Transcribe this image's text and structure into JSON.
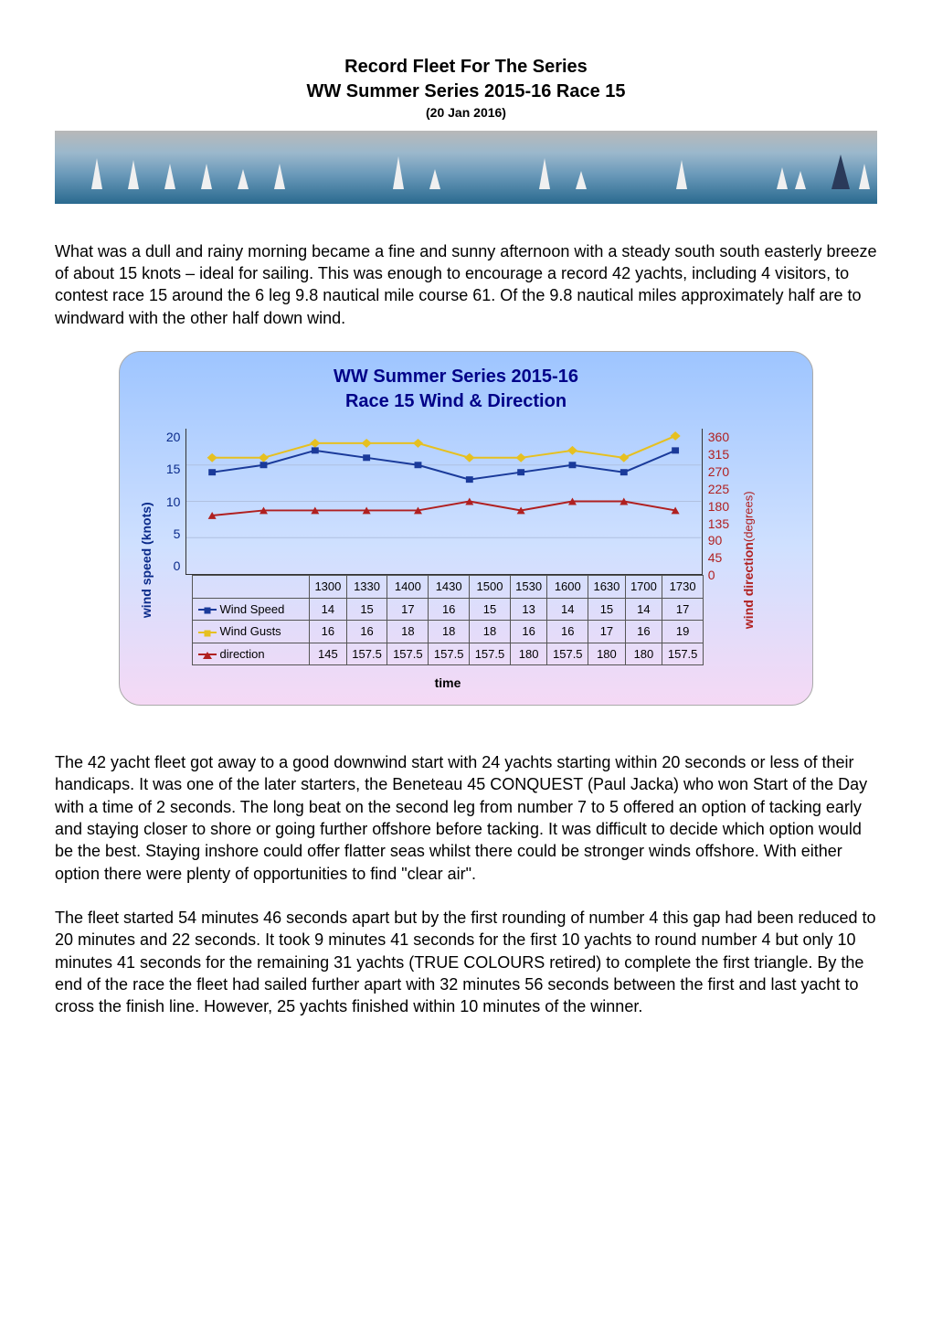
{
  "title": {
    "line1": "Record Fleet For The Series",
    "line2": "WW Summer Series 2015-16 Race 15",
    "date": "(20 Jan 2016)"
  },
  "paragraphs": {
    "p1": "What was a dull and rainy morning became a fine and sunny afternoon with a steady south south easterly breeze of about 15 knots – ideal for sailing. This was enough to encourage a record 42 yachts, including 4 visitors, to contest race 15 around the 6 leg 9.8 nautical mile course 61. Of the 9.8 nautical miles approximately half are to windward with the other half down wind.",
    "p2": "The 42 yacht fleet got away to a good downwind start with 24 yachts starting within 20 seconds or less of their handicaps. It was one of the later starters, the Beneteau 45 CONQUEST (Paul Jacka) who won Start of the Day with a time of 2 seconds. The long beat on the second leg from number 7 to 5 offered an option of tacking early and staying closer to shore or going further offshore before tacking. It was difficult to decide which option would be the best. Staying inshore could offer flatter seas whilst there could be stronger winds offshore.  With either option there were plenty of opportunities to find \"clear air\".",
    "p3": "The fleet started 54 minutes 46 seconds apart but by the first rounding of number 4 this gap had been reduced to 20 minutes and 22 seconds. It took 9 minutes 41 seconds for the first 10 yachts to round number 4 but only 10 minutes 41 seconds for the remaining 31 yachts (TRUE COLOURS retired) to complete the first triangle. By the end of the race the fleet had sailed further apart with 32 minutes 56 seconds between the first and last yacht to cross the finish line. However, 25 yachts finished within 10 minutes of the winner."
  },
  "chart": {
    "title_l1": "WW Summer Series 2015-16",
    "title_l2": "Race 15 Wind & Direction",
    "type": "line",
    "ylabel_left": "wind speed (knots)",
    "ylabel_right_l1": "wind direction",
    "ylabel_right_l2": "(degrees)",
    "xlabel": "time",
    "categories": [
      "1300",
      "1330",
      "1400",
      "1430",
      "1500",
      "1530",
      "1600",
      "1630",
      "1700",
      "1730"
    ],
    "left_axis": {
      "min": 0,
      "max": 20,
      "ticks": [
        "20",
        "15",
        "10",
        "5",
        "0"
      ],
      "color": "#0a2a8a"
    },
    "right_axis": {
      "min": 0,
      "max": 360,
      "ticks": [
        "360",
        "315",
        "270",
        "225",
        "180",
        "135",
        "90",
        "45",
        "0"
      ],
      "color": "#b02020"
    },
    "series": {
      "wind_speed": {
        "label": "Wind Speed",
        "values": [
          14,
          15,
          17,
          16,
          15,
          13,
          14,
          15,
          14,
          17
        ],
        "color": "#1a3a9a",
        "marker": "square",
        "axis": "left"
      },
      "wind_gusts": {
        "label": "Wind Gusts",
        "values": [
          16,
          16,
          18,
          18,
          18,
          16,
          16,
          17,
          16,
          19
        ],
        "color": "#e6c020",
        "marker": "diamond",
        "axis": "left"
      },
      "direction": {
        "label": "direction",
        "values": [
          145,
          157.5,
          157.5,
          157.5,
          157.5,
          180,
          157.5,
          180,
          180,
          157.5
        ],
        "color": "#b02020",
        "marker": "triangle",
        "axis": "right"
      }
    },
    "grid_color": "#b0c0e0",
    "title_color": "#000088",
    "background_gradient": {
      "top": "#9ec5ff",
      "mid": "#cfe0ff",
      "bottom": "#f5d9f5"
    },
    "line_width": 2,
    "marker_size": 7
  }
}
